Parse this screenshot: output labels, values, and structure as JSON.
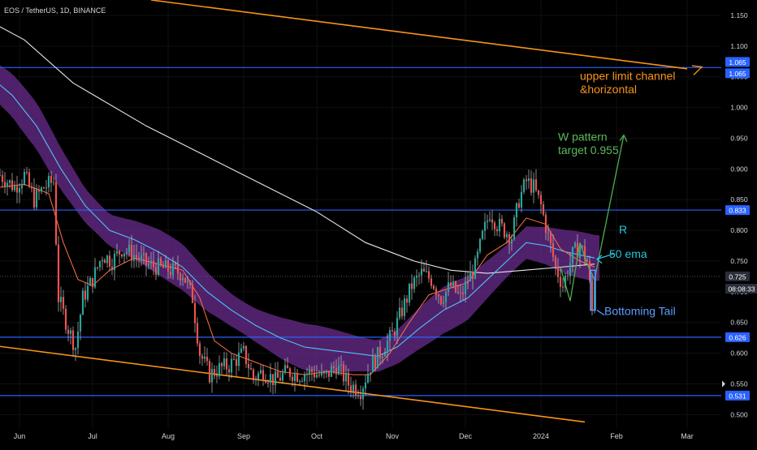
{
  "header": {
    "title": "EOS / TetherUS, 1D, BINANCE"
  },
  "price_axis": {
    "ticks": [
      "1.150",
      "1.100",
      "1.050",
      "1.000",
      "0.950",
      "0.900",
      "0.850",
      "0.800",
      "0.750",
      "0.700",
      "0.650",
      "0.600",
      "0.550",
      "0.500"
    ],
    "tick_values": [
      1.15,
      1.1,
      1.05,
      1.0,
      0.95,
      0.9,
      0.85,
      0.8,
      0.75,
      0.7,
      0.65,
      0.6,
      0.55,
      0.5
    ],
    "badges": [
      {
        "text": "1.065",
        "value": 1.065,
        "offset": -7,
        "color": "#2962ff"
      },
      {
        "text": "1.065",
        "value": 1.065,
        "offset": 7,
        "color": "#2962ff"
      },
      {
        "text": "0.833",
        "value": 0.833,
        "offset": 0,
        "color": "#2962ff"
      },
      {
        "text": "0.725",
        "value": 0.725,
        "offset": 0,
        "color": "#2a2e39"
      },
      {
        "text": "08:08:33",
        "value": 0.705,
        "offset": 0,
        "color": "#2a2e39"
      },
      {
        "text": "0.626",
        "value": 0.626,
        "offset": 0,
        "color": "#2962ff"
      },
      {
        "text": "0.531",
        "value": 0.531,
        "offset": 0,
        "color": "#2962ff"
      }
    ]
  },
  "time_axis": {
    "labels": [
      "Jun",
      "Jul",
      "Aug",
      "Sep",
      "Oct",
      "Nov",
      "Dec",
      "2024",
      "Feb",
      "Mar"
    ],
    "label_days": [
      8,
      38,
      69,
      100,
      130,
      161,
      191,
      222,
      253,
      282
    ]
  },
  "colors": {
    "up": "#26a69a",
    "down": "#ef5350",
    "wick": "#c4c4c4",
    "band": "#6a2c8e",
    "horizontal": "#2962ff",
    "channel": "#f7931a",
    "ema200": "#e6e6e6",
    "ema50": "#4fc3f7",
    "ema20": "#ff7043"
  },
  "chart_data": {
    "type": "candlestick",
    "title": "EOS / TetherUS, 1D, BINANCE",
    "x_axis": {
      "unit": "days since 2023-05-25",
      "range": [
        0,
        296
      ]
    },
    "y_axis": {
      "range": [
        0.478,
        1.175
      ],
      "side": "right"
    },
    "path_points": [
      [
        0,
        0.89
      ],
      [
        6,
        0.87
      ],
      [
        10,
        0.89
      ],
      [
        14,
        0.85
      ],
      [
        18,
        0.87
      ],
      [
        22,
        0.88
      ],
      [
        24,
        0.69
      ],
      [
        28,
        0.64
      ],
      [
        31,
        0.61
      ],
      [
        34,
        0.69
      ],
      [
        38,
        0.72
      ],
      [
        42,
        0.76
      ],
      [
        46,
        0.75
      ],
      [
        50,
        0.77
      ],
      [
        55,
        0.76
      ],
      [
        60,
        0.745
      ],
      [
        65,
        0.74
      ],
      [
        70,
        0.735
      ],
      [
        75,
        0.73
      ],
      [
        79,
        0.69
      ],
      [
        82,
        0.6
      ],
      [
        86,
        0.565
      ],
      [
        90,
        0.575
      ],
      [
        94,
        0.58
      ],
      [
        100,
        0.6
      ],
      [
        104,
        0.56
      ],
      [
        108,
        0.57
      ],
      [
        113,
        0.555
      ],
      [
        118,
        0.57
      ],
      [
        123,
        0.565
      ],
      [
        128,
        0.57
      ],
      [
        133,
        0.56
      ],
      [
        138,
        0.58
      ],
      [
        143,
        0.55
      ],
      [
        148,
        0.54
      ],
      [
        152,
        0.58
      ],
      [
        156,
        0.6
      ],
      [
        161,
        0.63
      ],
      [
        165,
        0.67
      ],
      [
        169,
        0.71
      ],
      [
        173,
        0.73
      ],
      [
        177,
        0.72
      ],
      [
        181,
        0.69
      ],
      [
        185,
        0.71
      ],
      [
        189,
        0.69
      ],
      [
        192,
        0.72
      ],
      [
        195,
        0.74
      ],
      [
        198,
        0.79
      ],
      [
        201,
        0.83
      ],
      [
        204,
        0.81
      ],
      [
        207,
        0.8
      ],
      [
        210,
        0.79
      ],
      [
        213,
        0.85
      ],
      [
        216,
        0.88
      ],
      [
        219,
        0.87
      ],
      [
        222,
        0.84
      ],
      [
        225,
        0.79
      ],
      [
        228,
        0.74
      ],
      [
        231,
        0.71
      ],
      [
        235,
        0.76
      ],
      [
        238,
        0.775
      ],
      [
        241,
        0.75
      ],
      [
        243,
        0.67
      ],
      [
        244,
        0.725
      ]
    ],
    "series": [
      {
        "name": "",
        "kind": "ema200",
        "points": [
          [
            -4,
            1.14
          ],
          [
            10,
            1.11
          ],
          [
            30,
            1.04
          ],
          [
            60,
            0.97
          ],
          [
            90,
            0.91
          ],
          [
            110,
            0.87
          ],
          [
            130,
            0.83
          ],
          [
            150,
            0.78
          ],
          [
            170,
            0.75
          ],
          [
            185,
            0.735
          ],
          [
            200,
            0.73
          ],
          [
            215,
            0.735
          ],
          [
            230,
            0.74
          ],
          [
            244,
            0.745
          ]
        ]
      },
      {
        "name": "",
        "kind": "ema50",
        "points": [
          [
            -4,
            1.05
          ],
          [
            5,
            1.02
          ],
          [
            15,
            0.97
          ],
          [
            25,
            0.9
          ],
          [
            35,
            0.84
          ],
          [
            45,
            0.8
          ],
          [
            55,
            0.785
          ],
          [
            65,
            0.765
          ],
          [
            75,
            0.74
          ],
          [
            85,
            0.7
          ],
          [
            95,
            0.67
          ],
          [
            105,
            0.645
          ],
          [
            115,
            0.625
          ],
          [
            125,
            0.61
          ],
          [
            135,
            0.605
          ],
          [
            145,
            0.6
          ],
          [
            155,
            0.595
          ],
          [
            163,
            0.61
          ],
          [
            172,
            0.64
          ],
          [
            182,
            0.67
          ],
          [
            192,
            0.69
          ],
          [
            200,
            0.72
          ],
          [
            208,
            0.75
          ],
          [
            216,
            0.78
          ],
          [
            224,
            0.775
          ],
          [
            232,
            0.765
          ],
          [
            244,
            0.755
          ]
        ]
      },
      {
        "name": "",
        "kind": "ema20",
        "points": [
          [
            0,
            0.87
          ],
          [
            10,
            0.875
          ],
          [
            20,
            0.86
          ],
          [
            26,
            0.78
          ],
          [
            32,
            0.72
          ],
          [
            38,
            0.71
          ],
          [
            45,
            0.735
          ],
          [
            55,
            0.755
          ],
          [
            65,
            0.745
          ],
          [
            75,
            0.735
          ],
          [
            82,
            0.69
          ],
          [
            88,
            0.62
          ],
          [
            95,
            0.6
          ],
          [
            105,
            0.585
          ],
          [
            115,
            0.57
          ],
          [
            125,
            0.565
          ],
          [
            135,
            0.57
          ],
          [
            145,
            0.565
          ],
          [
            152,
            0.565
          ],
          [
            160,
            0.6
          ],
          [
            168,
            0.65
          ],
          [
            176,
            0.695
          ],
          [
            184,
            0.705
          ],
          [
            192,
            0.715
          ],
          [
            200,
            0.76
          ],
          [
            208,
            0.78
          ],
          [
            216,
            0.82
          ],
          [
            224,
            0.81
          ],
          [
            230,
            0.77
          ],
          [
            238,
            0.75
          ],
          [
            244,
            0.74
          ]
        ]
      }
    ],
    "horizontal_levels": [
      1.065,
      0.833,
      0.626,
      0.531
    ],
    "channel_lines": [
      {
        "from": [
          62,
          1.175
        ],
        "to": [
          282,
          1.063
        ]
      },
      {
        "from": [
          0,
          0.611
        ],
        "to": [
          240,
          0.488
        ]
      }
    ],
    "annotations": [
      {
        "text": "upper limit channel",
        "x": 238,
        "y": 1.045,
        "color": "#f7931a"
      },
      {
        "text": "&horizontal",
        "x": 238,
        "y": 1.023,
        "color": "#f7931a"
      },
      {
        "text": "W pattern",
        "x": 229,
        "y": 0.946,
        "color": "#5cb85c"
      },
      {
        "text": "target 0.955",
        "x": 229,
        "y": 0.924,
        "color": "#5cb85c"
      },
      {
        "text": "R",
        "x": 254,
        "y": 0.795,
        "color": "#26c6da"
      },
      {
        "text": "50 ema",
        "x": 250,
        "y": 0.755,
        "color": "#26c6da"
      },
      {
        "text": "Bottoming Tail",
        "x": 248,
        "y": 0.662,
        "color": "#5c9cff"
      }
    ]
  }
}
